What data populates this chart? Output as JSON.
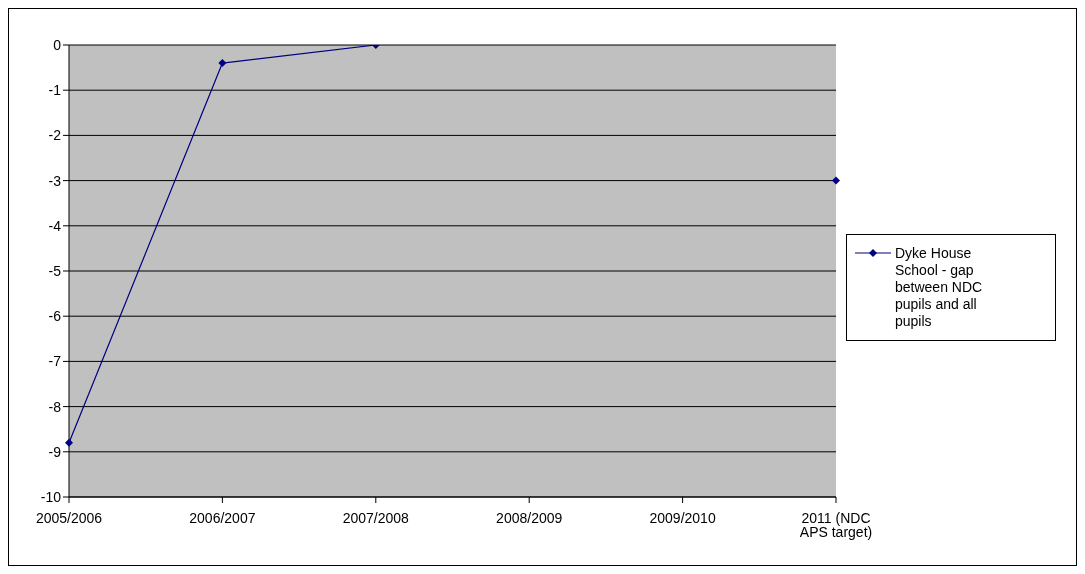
{
  "chart_data": {
    "type": "line",
    "categories": [
      "2005/2006",
      "2006/2007",
      "2007/2008",
      "2008/2009",
      "2009/2010",
      "2011 (NDC APS target)"
    ],
    "series": [
      {
        "name": "Dyke House School - gap between NDC pupils and all pupils",
        "color": "#000080",
        "values": [
          -8.8,
          -0.4,
          0,
          null,
          null,
          -3
        ]
      }
    ],
    "ylim": [
      -10,
      0
    ],
    "yticks": [
      -10,
      -9,
      -8,
      -7,
      -6,
      -5,
      -4,
      -3,
      -2,
      -1,
      0
    ],
    "grid": "y",
    "legend": "right",
    "marker": "diamond",
    "line_style": "solid"
  }
}
